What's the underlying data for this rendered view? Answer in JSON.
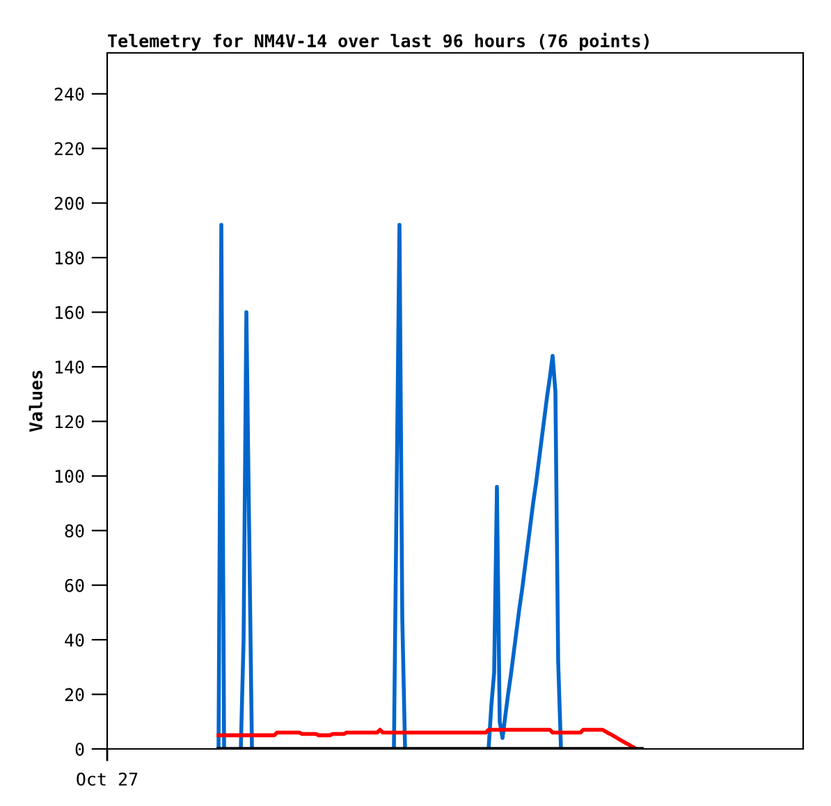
{
  "chart_data": {
    "type": "line",
    "title": "Telemetry for NM4V-14 over last 96 hours (76 points)",
    "ylabel": "Values",
    "categories": [
      null,
      null,
      null,
      null,
      null,
      null,
      null,
      null,
      null,
      null,
      null,
      null,
      null,
      null,
      null,
      null,
      null,
      null,
      null,
      null,
      null,
      null,
      null,
      null,
      null,
      null,
      null,
      null,
      null,
      null,
      null,
      null,
      null,
      null,
      null,
      null,
      null,
      null,
      null,
      null,
      null,
      null,
      null,
      null,
      null,
      null,
      null,
      null,
      null,
      null,
      null,
      null,
      null,
      null,
      null,
      null,
      null,
      null,
      null,
      null,
      null,
      null,
      null,
      null,
      null,
      null,
      null,
      null,
      null,
      null,
      null,
      null,
      null,
      null,
      null,
      null,
      null,
      null,
      null,
      null,
      null,
      null,
      null,
      null,
      null,
      null,
      null,
      null,
      null,
      null,
      null,
      null,
      null,
      null,
      null,
      null,
      null,
      null,
      null,
      null,
      null,
      null,
      null,
      null,
      null,
      null,
      null,
      null,
      null,
      null,
      null,
      null,
      null,
      null,
      null,
      null,
      null,
      null,
      null,
      null,
      null,
      null,
      null,
      null,
      null,
      null,
      null,
      null,
      null,
      null,
      null,
      null,
      null,
      null,
      null,
      null,
      null,
      null,
      null,
      null,
      null,
      null,
      null,
      null,
      null,
      null,
      null,
      null,
      null,
      null,
      null,
      null,
      null,
      null,
      null,
      null,
      null,
      null,
      null,
      null,
      null,
      null,
      null,
      null,
      null,
      null,
      null,
      null,
      null,
      null,
      null,
      null,
      null,
      null,
      null,
      null,
      null,
      null,
      null,
      null,
      null,
      null,
      null,
      null,
      null,
      null,
      null,
      null,
      null,
      null,
      null,
      null,
      null,
      null,
      null,
      null,
      null,
      null,
      null,
      null,
      null,
      null,
      null,
      null,
      null,
      null,
      null,
      null,
      null,
      null,
      null,
      null,
      null,
      null,
      null,
      null,
      null,
      null,
      null,
      null,
      null,
      null,
      null,
      null,
      null,
      null,
      null,
      null,
      null,
      null,
      null,
      null,
      null,
      null,
      null,
      null,
      null,
      null,
      null,
      null,
      null,
      null,
      null,
      null,
      null,
      null,
      null,
      null,
      null,
      null
    ],
    "ylim": [
      0,
      255
    ],
    "yticks": [
      0,
      20,
      40,
      60,
      80,
      100,
      120,
      140,
      160,
      180,
      200,
      220,
      240
    ],
    "tick_labels": "y",
    "annotations": [
      "Oct 27"
    ],
    "grid": false,
    "legend": false,
    "marker": "none",
    "line_style": "solid",
    "series": [
      {
        "color": "#0066cc",
        "values": [
          null,
          null,
          null,
          null,
          null,
          null,
          null,
          null,
          null,
          null,
          null,
          null,
          null,
          null,
          null,
          null,
          null,
          null,
          null,
          null,
          null,
          null,
          null,
          null,
          null,
          null,
          null,
          null,
          null,
          null,
          null,
          null,
          null,
          null,
          null,
          null,
          null,
          null,
          null,
          null,
          0,
          192,
          0,
          null,
          null,
          null,
          null,
          null,
          0,
          40,
          160,
          80,
          0,
          null,
          null,
          null,
          null,
          null,
          null,
          null,
          null,
          null,
          null,
          null,
          null,
          null,
          null,
          null,
          null,
          null,
          null,
          null,
          null,
          null,
          null,
          null,
          null,
          null,
          null,
          null,
          null,
          null,
          null,
          null,
          null,
          null,
          null,
          null,
          null,
          null,
          null,
          null,
          null,
          null,
          null,
          null,
          null,
          null,
          null,
          null,
          null,
          null,
          null,
          0,
          97,
          192,
          48,
          0,
          null,
          null,
          null,
          null,
          null,
          null,
          null,
          null,
          null,
          null,
          null,
          null,
          null,
          null,
          null,
          null,
          null,
          null,
          null,
          null,
          null,
          null,
          null,
          null,
          null,
          null,
          null,
          null,
          null,
          0,
          16,
          28,
          96,
          10,
          4,
          12,
          20,
          27,
          35,
          43,
          51,
          58,
          66,
          74,
          82,
          90,
          97,
          105,
          113,
          121,
          129,
          136,
          144,
          131,
          32,
          0,
          null,
          null,
          null,
          null,
          null,
          null,
          null,
          null,
          null,
          null,
          null,
          null,
          null,
          null,
          null,
          null,
          null,
          null,
          null,
          null,
          null,
          null,
          null,
          null,
          null,
          null,
          null,
          null,
          null,
          null,
          null,
          null,
          null,
          null,
          null,
          null,
          null,
          null,
          null,
          null,
          null,
          null,
          null,
          null,
          null,
          null,
          null,
          null,
          null,
          null,
          null,
          null,
          null,
          null,
          null,
          null,
          null,
          null,
          null,
          null,
          null,
          null,
          null,
          null,
          null,
          null,
          null,
          null,
          null,
          null,
          null,
          null,
          null,
          null,
          null,
          null,
          null,
          null,
          null,
          null,
          null,
          null,
          null,
          null,
          null,
          null
        ]
      },
      {
        "color": "#ff0000",
        "values": [
          null,
          null,
          null,
          null,
          null,
          null,
          null,
          null,
          null,
          null,
          null,
          null,
          null,
          null,
          null,
          null,
          null,
          null,
          null,
          null,
          null,
          null,
          null,
          null,
          null,
          null,
          null,
          null,
          null,
          null,
          null,
          null,
          null,
          null,
          null,
          null,
          null,
          null,
          null,
          null,
          5,
          5,
          5,
          5,
          5,
          5,
          5,
          5,
          5,
          5,
          5,
          5,
          5,
          5,
          5,
          5,
          5,
          5,
          5,
          5,
          5,
          6,
          6,
          6,
          6,
          6,
          6,
          6,
          6,
          6,
          5.5,
          5.5,
          5.5,
          5.5,
          5.5,
          5.5,
          5,
          5,
          5,
          5,
          5,
          5.5,
          5.5,
          5.5,
          5.5,
          5.5,
          6,
          6,
          6,
          6,
          6,
          6,
          6,
          6,
          6,
          6,
          6,
          6,
          7,
          6,
          6,
          6,
          6,
          6,
          6,
          6,
          6,
          6,
          6,
          6,
          6,
          6,
          6,
          6,
          6,
          6,
          6,
          6,
          6,
          6,
          6,
          6,
          6,
          6,
          6,
          6,
          6,
          6,
          6,
          6,
          6,
          6,
          6,
          6,
          6,
          6,
          6,
          7,
          7,
          7,
          7,
          7,
          7,
          7,
          7,
          7,
          7,
          7,
          7,
          7,
          7,
          7,
          7,
          7,
          7,
          7,
          7,
          7,
          7,
          7,
          6,
          6,
          6,
          6,
          6,
          6,
          6,
          6,
          6,
          6,
          6,
          7,
          7,
          7,
          7,
          7,
          7,
          7,
          7,
          6.4,
          5.8,
          5.3,
          4.7,
          4.1,
          3.5,
          2.9,
          2.3,
          1.8,
          1.2,
          0.6,
          0,
          null,
          null,
          null,
          null,
          null,
          null,
          null,
          null,
          null,
          null,
          null,
          null,
          null,
          null,
          null,
          null,
          null,
          null,
          null,
          null,
          null,
          null,
          null,
          null,
          null,
          null,
          null,
          null,
          null,
          null,
          null,
          null,
          null,
          null,
          null,
          null,
          null,
          null,
          null,
          null,
          null,
          null,
          null,
          null,
          null,
          null,
          null,
          null,
          null,
          null,
          null,
          null,
          null,
          null,
          null,
          null,
          null,
          null,
          null
        ]
      },
      {
        "color": "#000000",
        "values": [
          null,
          null,
          null,
          null,
          null,
          null,
          null,
          null,
          null,
          null,
          null,
          null,
          null,
          null,
          null,
          null,
          null,
          null,
          null,
          null,
          null,
          null,
          null,
          null,
          null,
          null,
          null,
          null,
          null,
          null,
          null,
          null,
          null,
          null,
          null,
          null,
          null,
          null,
          null,
          null,
          0,
          0,
          0,
          0,
          0,
          0,
          0,
          0,
          0,
          0,
          0,
          0,
          0,
          0,
          0,
          0,
          0,
          0,
          0,
          0,
          0,
          0,
          0,
          0,
          0,
          0,
          0,
          0,
          0,
          0,
          0,
          0,
          0,
          0,
          0,
          0,
          0,
          0,
          0,
          0,
          0,
          0,
          0,
          0,
          0,
          0,
          0,
          0,
          0,
          0,
          0,
          0,
          0,
          0,
          0,
          0,
          0,
          0,
          0,
          0,
          0,
          0,
          0,
          0,
          0,
          0,
          0,
          0,
          0,
          0,
          0,
          0,
          0,
          0,
          0,
          0,
          0,
          0,
          0,
          0,
          0,
          0,
          0,
          0,
          0,
          0,
          0,
          0,
          0,
          0,
          0,
          0,
          0,
          0,
          0,
          0,
          0,
          0,
          0,
          0,
          0,
          0,
          0,
          0,
          0,
          0,
          0,
          0,
          0,
          0,
          0,
          0,
          0,
          0,
          0,
          0,
          0,
          0,
          0,
          0,
          0,
          0,
          0,
          0,
          0,
          0,
          0,
          0,
          0,
          0,
          0,
          0,
          0,
          0,
          0,
          0,
          0,
          0,
          0,
          0,
          0,
          0,
          0,
          0,
          0,
          0,
          0,
          0,
          0,
          0,
          0,
          0,
          0,
          null,
          null,
          null,
          null,
          null,
          null,
          null,
          null,
          null,
          null,
          null,
          null,
          null,
          null,
          null,
          null,
          null,
          null,
          null,
          null,
          null,
          null,
          null,
          null,
          null,
          null,
          null,
          null,
          null,
          null,
          null,
          null,
          null,
          null,
          null,
          null,
          null,
          null,
          null,
          null,
          null,
          null,
          null,
          null,
          null,
          null,
          null,
          null,
          null,
          null,
          null,
          null,
          null,
          null,
          null,
          null,
          null
        ]
      }
    ]
  }
}
